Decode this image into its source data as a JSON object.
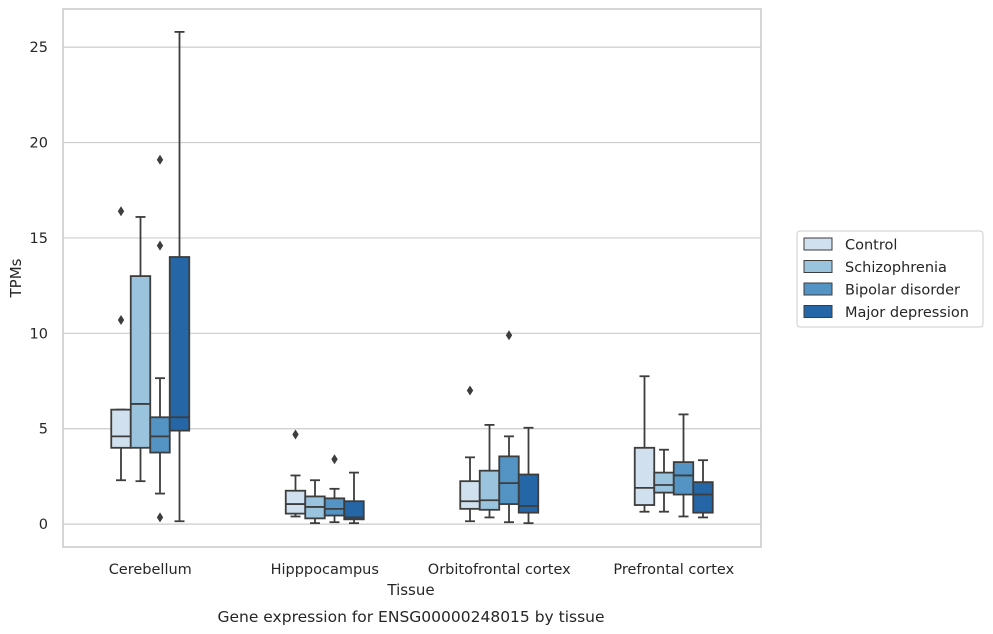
{
  "chart_data": {
    "type": "box",
    "xlabel": "Tissue",
    "ylabel": "TPMs",
    "caption": "Gene expression for ENSG00000248015 by tissue",
    "ylim": [
      -1.2,
      27
    ],
    "yticks": [
      0,
      5,
      10,
      15,
      20,
      25
    ],
    "grid": "horizontal",
    "legend_position": "right",
    "categories": [
      "Cerebellum",
      "Hipppocampus",
      "Orbitofrontal cortex",
      "Prefrontal cortex"
    ],
    "series": [
      {
        "name": "Control",
        "color": "#d1e0ef",
        "boxes": [
          {
            "whisker_low": 2.3,
            "q1": 4.0,
            "median": 4.6,
            "q3": 6.0,
            "whisker_high": 6.0,
            "outliers": [
              10.7,
              16.4
            ]
          },
          {
            "whisker_low": 0.4,
            "q1": 0.55,
            "median": 1.05,
            "q3": 1.75,
            "whisker_high": 2.55,
            "outliers": [
              4.7
            ]
          },
          {
            "whisker_low": 0.15,
            "q1": 0.8,
            "median": 1.2,
            "q3": 2.25,
            "whisker_high": 3.5,
            "outliers": [
              7.0
            ]
          },
          {
            "whisker_low": 0.65,
            "q1": 1.0,
            "median": 1.9,
            "q3": 4.0,
            "whisker_high": 7.75,
            "outliers": []
          }
        ]
      },
      {
        "name": "Schizophrenia",
        "color": "#9ac4dd",
        "boxes": [
          {
            "whisker_low": 2.25,
            "q1": 4.0,
            "median": 6.3,
            "q3": 13.0,
            "whisker_high": 16.1,
            "outliers": []
          },
          {
            "whisker_low": 0.05,
            "q1": 0.3,
            "median": 0.9,
            "q3": 1.45,
            "whisker_high": 2.3,
            "outliers": []
          },
          {
            "whisker_low": 0.35,
            "q1": 0.75,
            "median": 1.25,
            "q3": 2.8,
            "whisker_high": 5.2,
            "outliers": []
          },
          {
            "whisker_low": 0.65,
            "q1": 1.65,
            "median": 2.05,
            "q3": 2.7,
            "whisker_high": 3.9,
            "outliers": []
          }
        ]
      },
      {
        "name": "Bipolar disorder",
        "color": "#5494c4",
        "boxes": [
          {
            "whisker_low": 1.6,
            "q1": 3.75,
            "median": 4.6,
            "q3": 5.6,
            "whisker_high": 7.65,
            "outliers": [
              0.35,
              14.6,
              19.1
            ]
          },
          {
            "whisker_low": 0.1,
            "q1": 0.45,
            "median": 0.8,
            "q3": 1.35,
            "whisker_high": 1.85,
            "outliers": [
              3.4
            ]
          },
          {
            "whisker_low": 0.1,
            "q1": 1.05,
            "median": 2.15,
            "q3": 3.55,
            "whisker_high": 4.6,
            "outliers": [
              9.9
            ]
          },
          {
            "whisker_low": 0.4,
            "q1": 1.55,
            "median": 2.55,
            "q3": 3.25,
            "whisker_high": 5.75,
            "outliers": []
          }
        ]
      },
      {
        "name": "Major depression",
        "color": "#2466a6",
        "boxes": [
          {
            "whisker_low": 0.15,
            "q1": 4.9,
            "median": 5.6,
            "q3": 14.0,
            "whisker_high": 25.8,
            "outliers": []
          },
          {
            "whisker_low": 0.05,
            "q1": 0.25,
            "median": 0.35,
            "q3": 1.2,
            "whisker_high": 2.7,
            "outliers": []
          },
          {
            "whisker_low": 0.05,
            "q1": 0.6,
            "median": 0.95,
            "q3": 2.6,
            "whisker_high": 5.05,
            "outliers": []
          },
          {
            "whisker_low": 0.35,
            "q1": 0.6,
            "median": 1.55,
            "q3": 2.2,
            "whisker_high": 3.35,
            "outliers": []
          }
        ]
      }
    ]
  }
}
